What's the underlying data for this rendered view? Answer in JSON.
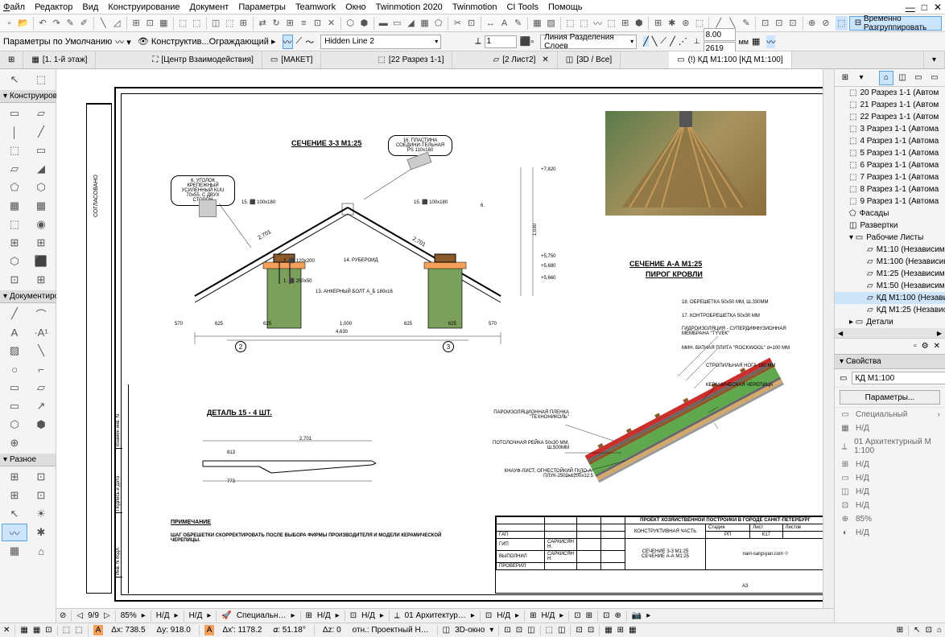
{
  "menu": [
    "Файл",
    "Редактор",
    "Вид",
    "Конструирование",
    "Документ",
    "Параметры",
    "Teamwork",
    "Окно",
    "Twinmotion 2020",
    "Twinmotion",
    "CI Tools",
    "Помощь"
  ],
  "toolbar2": {
    "params_label": "Параметры по Умолчанию",
    "layer_btn": "Конструктив...Ограждающий",
    "hidden_line": "Hidden Line 2",
    "line_sep": "Линия Разделения Слоев",
    "input1": "1",
    "dim1": "8.00",
    "dim2": "2619",
    "mm": "мм"
  },
  "temp_ungroup": "Временно Разгруппировать",
  "tabs": [
    {
      "label": "[1. 1-й этаж]",
      "icon": "▦"
    },
    {
      "label": "[Центр Взаимодействия]",
      "icon": "⛶"
    },
    {
      "label": "[МАКЕТ]",
      "icon": "▭"
    },
    {
      "label": "[22 Разрез 1-1]",
      "icon": "⬚"
    },
    {
      "label": "[2 Лист2]",
      "icon": "▱",
      "closable": true
    },
    {
      "label": "[3D / Все]",
      "icon": "◫"
    },
    {
      "label": "(!) КД М1:100 [КД М1:100]",
      "icon": "▭",
      "active": true
    }
  ],
  "left_sections": {
    "arrow": "↖",
    "marquee": "⬚",
    "construct": "Конструирова",
    "construct_tools": [
      "▭",
      "▱",
      "│",
      "╱",
      "⬚",
      "▭",
      "▱",
      "◢",
      "⬠",
      "⬡",
      "▦",
      "▦",
      "⬚",
      "◉",
      "▬",
      "▬",
      "⊞",
      "⊞",
      "⬡",
      "⬛"
    ],
    "doc": "Документиро",
    "doc_tools": [
      "╱",
      "⌒",
      "A",
      "·A",
      "▦",
      "╲",
      "○",
      "⌐",
      "▭",
      "▱",
      "▭",
      "□",
      "⬚",
      "↗",
      "⬡",
      "⬢",
      "⊕"
    ],
    "misc": "Разное",
    "misc_tools": [
      "⊞",
      "⊡",
      "⊞",
      "⊡",
      "↖",
      "☀",
      "〰",
      "✱",
      "▦",
      "⌂"
    ]
  },
  "drawing": {
    "section_33": "СЕЧЕНИЕ  3-3  М1:25",
    "section_aa": "СЕЧЕНИЕ   А-А   М1:25",
    "roof_pie": "ПИРОГ КРОВЛИ",
    "detail_15": "ДЕТАЛЬ 15 - 4 ШТ.",
    "note_hdr": "ПРИМЕЧАНИЕ",
    "note_text": "ШАГ ОБРЕШЕТКИ СКОРРЕКТИРОВАТЬ ПОСЛЕ ВЫБОРА ФИРМЫ ПРОИЗВОДИТЕЛЯ И МОДЕЛИ КЕРАМИЧЕСКОЙ ЧЕРЕПИЦЫ.",
    "callout_6": "6. УГОЛОК КРЕПЕЖНЫЙ УСИЛЕННЫЙ KUU 70x55, С ДВУХ СТОРОН",
    "callout_16": "16. ПЛАСТИНА СОЕДИНИ-ТЕЛЬНАЯ PS 110x160",
    "label_15": "15. ⬛ 100x180",
    "label_15b": "15. ⬛ 100x180",
    "label_2": "2. ⬛ 120x200",
    "label_1": "1. ⬛ 250x50",
    "label_14": "14. РУБЕРОИД",
    "label_13": "13. АНКЕРНЫЙ БОЛТ А_Б 180x16",
    "dim_2701": "2,701",
    "dim_4630": "4,630",
    "dim_1000": "1,000",
    "dim_625a": "625",
    "dim_625b": "625",
    "dim_570a": "570",
    "dim_570b": "570",
    "dim_2701b": "2,701",
    "dim_813": "813",
    "dim_773": "773",
    "dim_1030": "1,030",
    "dim_275": "275",
    "elev_7820": "+7,820",
    "elev_5750": "+5,750",
    "elev_5680": "+5,680",
    "elev_5660": "+5,660",
    "labels_roof": {
      "l18": "18. ОБРЕШЕТКА 50х50 ММ, Ш.330ММ",
      "l17": "17. КОНТРОБРЕШЕТКА 50х30 ММ",
      "hydro": "ГИДРОИЗОЛЯЦИЯ - СУПЕРДИФФУЗИОННАЯ МЕМБРАНА \"TYVEK\"",
      "rockwool": "МИН. ВАТНАЯ ПЛИТА \"ROCKWOOL\" d=100 ММ",
      "rafter": "СТРОПИЛЬНАЯ НОГА 180 ММ",
      "tile": "КЕРАМИЧЕСКАЯ ЧЕРЕПИЦА",
      "vapor": "ПАРОИЗОЛЯЦИОННАЯ ПЛЕНКА \"ТЕХНОНИКОЛЬ\"",
      "ceiling": "ПОТОЛОЧНАЯ РЕЙКА 50х30 ММ, Ш.500ММ",
      "knauf": "КНАУФ-ЛИСТ, ОГНЕСТОЙКИЙ ГКЛО-А-ПЛУК-2500х1200х12.5"
    },
    "title_block": {
      "project": "ПРОЕКТ ХОЗЯЙСТВЕННОЙ ПОСТРОЙКИ В ГОРОДЕ САНКТ-ПЕТЕРБУРГ",
      "part": "КОНСТРУКТИВНАЯ ЧАСТЬ",
      "stage": "Стадия",
      "sheet": "Лист",
      "sheets": "Листов",
      "rp": "РП",
      "k17": "К17",
      "gap": "ГАП",
      "gip": "ГИП",
      "exec": "ВЫПОЛНИЛ",
      "check": "ПРОВЕРИЛ",
      "name1": "САРКИСЯН Н.",
      "name2": "САРКИСЯН Н.",
      "sect_33": "СЕЧЕНИЕ 3-3 М1:25",
      "sect_aa": "СЕЧЕНИЕ А-А М1:25",
      "website": "nairi-sargsyan.com",
      "a3": "А3"
    },
    "side_labels": {
      "approved": "СОГЛАСОВАНО",
      "changes": "Взамен инв. N",
      "date": "Подпись и дата",
      "inv": "Инв. N подл."
    }
  },
  "nav": {
    "items": [
      {
        "icon": "⬚",
        "label": "20 Разрез 1-1 (Автом"
      },
      {
        "icon": "⬚",
        "label": "21 Разрез 1-1 (Автом"
      },
      {
        "icon": "⬚",
        "label": "22 Разрез 1-1 (Автом"
      },
      {
        "icon": "⬚",
        "label": "3 Разрез 1-1 (Автома"
      },
      {
        "icon": "⬚",
        "label": "4 Разрез 1-1 (Автома"
      },
      {
        "icon": "⬚",
        "label": "5 Разрез 1-1 (Автома"
      },
      {
        "icon": "⬚",
        "label": "6 Разрез 1-1 (Автома"
      },
      {
        "icon": "⬚",
        "label": "7 Разрез 1-1 (Автома"
      },
      {
        "icon": "⬚",
        "label": "8 Разрез 1-1 (Автома"
      },
      {
        "icon": "⬚",
        "label": "9 Разрез 1-1 (Автома"
      },
      {
        "icon": "⬠",
        "label": "Фасады"
      },
      {
        "icon": "◫",
        "label": "Развертки"
      },
      {
        "icon": "▾ ▭",
        "label": "Рабочие Листы",
        "expand": true
      },
      {
        "icon": "▱",
        "label": "М1:10 (Независимый)",
        "indent": true
      },
      {
        "icon": "▱",
        "label": "М1:100 (Независимы",
        "indent": true
      },
      {
        "icon": "▱",
        "label": "М1:25 (Независимый)",
        "indent": true
      },
      {
        "icon": "▱",
        "label": "М1:50 (Независимый)",
        "indent": true
      },
      {
        "icon": "▱",
        "label": "КД М1:100 (Независи",
        "indent": true,
        "sel": true
      },
      {
        "icon": "▱",
        "label": "КД М1:25 (Независим",
        "indent": true
      },
      {
        "icon": "▸ ▭",
        "label": "Детали"
      }
    ],
    "props_hdr": "Свойства",
    "props_val": "КД М1:100",
    "params_btn": "Параметры...",
    "prop_items": [
      {
        "ic": "▭",
        "label": "Специальный",
        "arrow": "›"
      },
      {
        "ic": "▦",
        "label": "Н/Д"
      },
      {
        "ic": "⟂",
        "label": "01 Архитектурный М 1:100"
      },
      {
        "ic": "⊞",
        "label": "Н/Д"
      },
      {
        "ic": "▭",
        "label": "Н/Д"
      },
      {
        "ic": "◫",
        "label": "Н/Д"
      },
      {
        "ic": "⊡",
        "label": "Н/Д"
      },
      {
        "ic": "⊕",
        "label": "85%"
      },
      {
        "ic": "◐",
        "label": "Н/Д"
      }
    ]
  },
  "status": {
    "pages": "9/9",
    "zoom": "85%",
    "nd1": "Н/Д",
    "nd2": "Н/Д",
    "special": "Специальн…",
    "nd3": "Н/Д",
    "nd4": "Н/Д",
    "arch": "01 Архитектур…",
    "nd5": "Н/Д",
    "nd6": "Н/Д",
    "dx": "Δx: 738.5",
    "dy": "Δy: 918.0",
    "dx2": "Δx': 1178.2",
    "angle": "𝛼: 51.18°",
    "dz": "Δz: 0",
    "proj": "отн.: Проектный Н…",
    "window3d": "3D-окно"
  }
}
